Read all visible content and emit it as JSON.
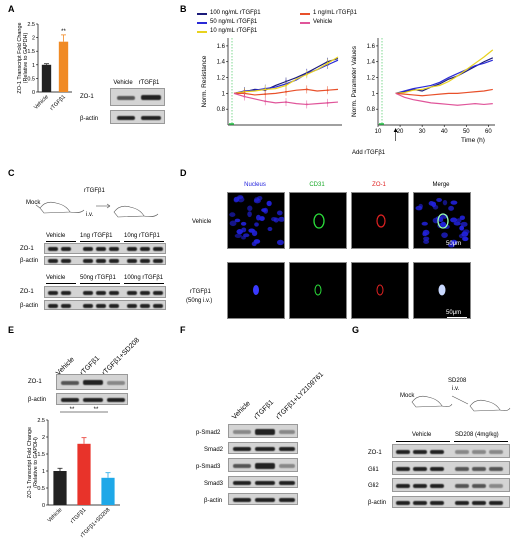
{
  "panels": {
    "A": {
      "label": "A",
      "blot_labels": [
        "ZO-1",
        "β-actin"
      ],
      "blot_headers": [
        "Vehicle",
        "rTGFβ1"
      ]
    },
    "B": {
      "label": "B",
      "legend": [
        "100 ng/mL rTGFβ1",
        "50 ng/mL rTGFβ1",
        "10 ng/mL rTGFβ1",
        "1 ng/mL rTGFβ1",
        "Vehicle"
      ],
      "add_label": "Add rTGFβ1"
    },
    "C": {
      "label": "C",
      "mock": "Mock",
      "injection": "rTGFβ1",
      "route": "i.v.",
      "headers1": [
        "Vehicle",
        "1ng rTGFβ1",
        "10ng rTGFβ1"
      ],
      "headers2": [
        "Vehicle",
        "50ng rTGFβ1",
        "100ng rTGFβ1"
      ],
      "blot_labels": [
        "ZO-1",
        "β-actin"
      ]
    },
    "D": {
      "label": "D",
      "columns": [
        "Nucleus",
        "CD31",
        "ZO-1",
        "Merge"
      ],
      "rows": [
        "Vehicle",
        "rTGFβ1",
        "(50ng i.v.)"
      ],
      "scale": "50μm"
    },
    "E": {
      "label": "E",
      "headers": [
        "Vehicle",
        "rTGFβ1",
        "rTGFβ1+SD208"
      ],
      "blot_labels": [
        "ZO-1",
        "β-actin"
      ]
    },
    "F": {
      "label": "F",
      "headers": [
        "Vehicle",
        "rTGFβ1",
        "rTGFβ1+LY2109761"
      ],
      "blot_labels": [
        "p-Smad2",
        "Smad2",
        "p-Smad3",
        "Smad3",
        "β-actin"
      ]
    },
    "G": {
      "label": "G",
      "mock": "Mock",
      "drug": "SD208",
      "route": "i.v.",
      "groups": [
        "Vehicle",
        "SD208 (4mg/kg)"
      ],
      "blot_labels": [
        "ZO-1",
        "Gli1",
        "Gli2",
        "β-actin"
      ]
    }
  },
  "colors": {
    "vehicle_bar": "#222222",
    "rtgf_bar": "#f08a24",
    "e_vehicle": "#222222",
    "e_rtgf": "#e8332a",
    "e_sd208": "#1ea8e8",
    "s100": "#1b1b7a",
    "s50": "#2a2ad6",
    "s10": "#e8d21e",
    "s1": "#e8502a",
    "svehicle": "#e0559a",
    "nucleus": "#2222dd",
    "cd31": "#2adb3a",
    "zo1": "#e02222",
    "merge": "#c9d9ff"
  },
  "chart_data": [
    {
      "type": "bar",
      "panel": "A",
      "categories": [
        "Vehicle",
        "rTGFβ1"
      ],
      "values": [
        1.0,
        1.85
      ],
      "errors": [
        0.04,
        0.25
      ],
      "ylabel": "ZO-1 Transcript Fold Change (Relative to GAPDH)",
      "yticks": [
        "0",
        "0.5",
        "1",
        "1.5",
        "2",
        "2.5"
      ],
      "ylim": [
        0,
        2.5
      ],
      "significance": "**"
    },
    {
      "type": "line",
      "panel": "B-left",
      "ylabel": "Norm. Resistance",
      "yticks": [
        "0.8",
        "1",
        "1.2",
        "1.4",
        "1.6"
      ],
      "ylim": [
        0.6,
        1.7
      ],
      "series": [
        {
          "name": "100 ng/mL rTGFβ1",
          "values": [
            1.0,
            1.02,
            1.05,
            1.04,
            1.1,
            1.15,
            1.2,
            1.26,
            1.33,
            1.4,
            1.44
          ]
        },
        {
          "name": "50 ng/mL rTGFβ1",
          "values": [
            1.0,
            1.03,
            1.04,
            1.06,
            1.08,
            1.12,
            1.17,
            1.25,
            1.3,
            1.36,
            1.42
          ]
        },
        {
          "name": "10 ng/mL rTGFβ1",
          "values": [
            1.0,
            1.02,
            1.03,
            1.05,
            1.06,
            1.1,
            1.18,
            1.24,
            1.3,
            1.38,
            1.46
          ]
        },
        {
          "name": "1 ng/mL rTGFβ1",
          "values": [
            1.0,
            1.0,
            0.98,
            0.99,
            1.0,
            1.02,
            1.04,
            1.05,
            1.03,
            1.04,
            1.05
          ]
        },
        {
          "name": "Vehicle",
          "values": [
            1.0,
            0.96,
            0.93,
            0.9,
            0.88,
            0.89,
            0.87,
            0.86,
            0.87,
            0.88,
            0.89
          ]
        }
      ]
    },
    {
      "type": "line",
      "panel": "B-right",
      "ylabel": "Norm. Parameter Values",
      "xlabel": "Time (h)",
      "xticks": [
        "10",
        "20",
        "30",
        "40",
        "50",
        "60"
      ],
      "xlim": [
        10,
        63
      ],
      "yticks": [
        "0.8",
        "1",
        "1.2",
        "1.4",
        "1.6"
      ],
      "ylim": [
        0.6,
        1.7
      ],
      "series": [
        {
          "name": "100 ng/mL rTGFβ1",
          "x": [
            18,
            22,
            26,
            30,
            34,
            38,
            42,
            46,
            50,
            54,
            58,
            62
          ],
          "values": [
            1.0,
            1.02,
            1.05,
            1.03,
            1.08,
            1.12,
            1.18,
            1.22,
            1.28,
            1.34,
            1.4,
            1.45
          ]
        },
        {
          "name": "50 ng/mL rTGFβ1",
          "x": [
            18,
            22,
            26,
            30,
            34,
            38,
            42,
            46,
            50,
            54,
            58,
            62
          ],
          "values": [
            1.0,
            1.03,
            1.06,
            1.08,
            1.1,
            1.14,
            1.2,
            1.25,
            1.3,
            1.35,
            1.38,
            1.42
          ]
        },
        {
          "name": "10 ng/mL rTGFβ1",
          "x": [
            18,
            22,
            26,
            30,
            34,
            38,
            42,
            46,
            50,
            54,
            58,
            62
          ],
          "values": [
            1.0,
            1.01,
            1.04,
            1.05,
            1.08,
            1.1,
            1.15,
            1.22,
            1.3,
            1.38,
            1.46,
            1.55
          ]
        },
        {
          "name": "1 ng/mL rTGFβ1",
          "x": [
            18,
            22,
            26,
            30,
            34,
            38,
            42,
            46,
            50,
            54,
            58,
            62
          ],
          "values": [
            1.0,
            0.99,
            0.98,
            0.97,
            0.98,
            0.99,
            1.0,
            1.0,
            1.01,
            1.02,
            1.03,
            1.05
          ]
        },
        {
          "name": "Vehicle",
          "x": [
            18,
            22,
            26,
            30,
            34,
            38,
            42,
            46,
            50,
            54,
            58,
            62
          ],
          "values": [
            1.0,
            0.95,
            0.92,
            0.9,
            0.88,
            0.87,
            0.86,
            0.85,
            0.86,
            0.87,
            0.86,
            0.87
          ]
        }
      ]
    },
    {
      "type": "bar",
      "panel": "E",
      "categories": [
        "Vehicle",
        "rTGFβ1",
        "rTGFβ1+SD208"
      ],
      "values": [
        1.0,
        1.8,
        0.8
      ],
      "errors": [
        0.08,
        0.18,
        0.15
      ],
      "ylabel": "ZO-1 Transcript Fold Change (Relative to GAPDH)",
      "yticks": [
        "0",
        "0.5",
        "1",
        "1.5",
        "2",
        "2.5"
      ],
      "ylim": [
        0,
        2.5
      ],
      "significance": [
        "**",
        "**"
      ]
    }
  ]
}
